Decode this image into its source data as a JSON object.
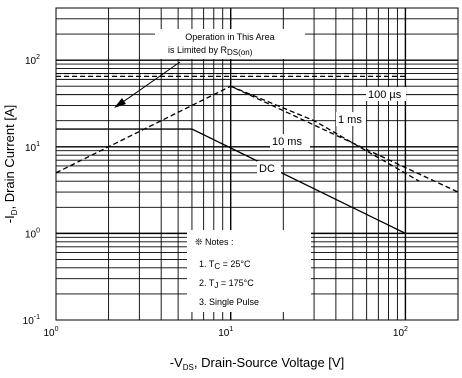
{
  "chart_data": {
    "type": "line",
    "xscale": "log",
    "yscale": "log",
    "xlim": [
      1,
      200
    ],
    "ylim": [
      0.1,
      400
    ],
    "grid": true,
    "x_ticks": [
      {
        "base": "10",
        "exp": "0",
        "value": 1
      },
      {
        "base": "10",
        "exp": "1",
        "value": 10
      },
      {
        "base": "10",
        "exp": "2",
        "value": 100
      }
    ],
    "y_ticks": [
      {
        "base": "10",
        "exp": "-1",
        "value": 0.1
      },
      {
        "base": "10",
        "exp": "0",
        "value": 1
      },
      {
        "base": "10",
        "exp": "1",
        "value": 10
      },
      {
        "base": "10",
        "exp": "2",
        "value": 100
      }
    ],
    "xlabel": {
      "pre": "-V",
      "sub": "DS",
      "post": ", Drain-Source Voltage [V]"
    },
    "ylabel": {
      "pre": "-I",
      "sub": "D",
      "post": ", Drain Current [A]"
    },
    "series": [
      {
        "name": "100 µs",
        "style": "dashed",
        "x": [
          1,
          100
        ],
        "y": [
          65,
          65
        ]
      },
      {
        "name": "1 ms",
        "style": "dashed",
        "x": [
          1,
          10,
          200
        ],
        "y": [
          5,
          50,
          3
        ]
      },
      {
        "name": "10 ms",
        "style": "dashed",
        "x": [
          10,
          30,
          120
        ],
        "y": [
          50,
          20,
          4
        ]
      },
      {
        "name": "DC",
        "style": "solid",
        "x": [
          1,
          6,
          100
        ],
        "y": [
          16,
          16,
          1
        ]
      }
    ],
    "limit_line": {
      "x": [
        1,
        100
      ],
      "y": [
        70,
        70
      ]
    },
    "annotations": {
      "operation_line1": "Operation in This Area",
      "operation_line2_pre": "is Limited by R",
      "operation_line2_sub": "DS(on)",
      "label_100us": "100 µs",
      "label_1ms": "1 ms",
      "label_10ms": "10 ms",
      "label_dc": "DC"
    },
    "notes": {
      "title": "❊ Notes :",
      "note1_pre": "1. T",
      "note1_sub": "C",
      "note1_post": " = 25°C",
      "note2_pre": "2. T",
      "note2_sub": "J",
      "note2_post": " = 175°C",
      "note3": "3. Single Pulse"
    }
  }
}
